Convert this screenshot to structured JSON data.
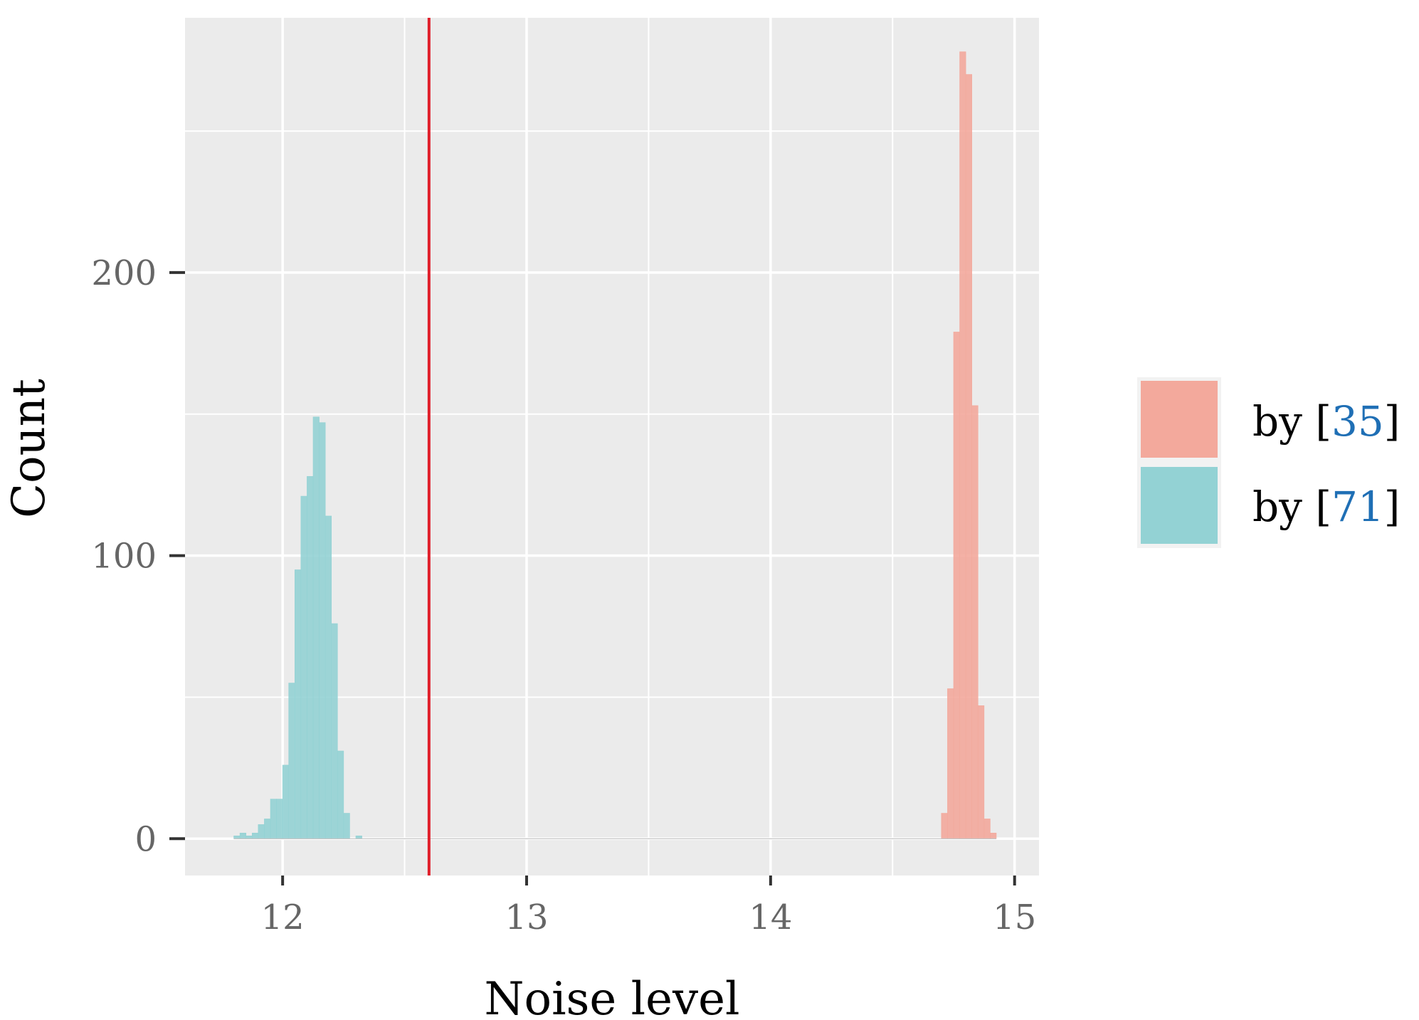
{
  "chart_data": {
    "type": "bar",
    "title": "",
    "xlabel": "Noise level",
    "ylabel": "Count",
    "xlim": [
      11.6,
      15.1
    ],
    "ylim": [
      -13,
      290
    ],
    "x_ticks": [
      12,
      13,
      14,
      15
    ],
    "x_tick_labels": [
      "12",
      "13",
      "14",
      "15"
    ],
    "y_ticks": [
      0,
      100,
      200
    ],
    "y_tick_labels": [
      "0",
      "100",
      "200"
    ],
    "x_minor_gridlines": [
      12.5,
      13.5,
      14.5
    ],
    "y_minor_gridlines": [
      50,
      150,
      250
    ],
    "grid": true,
    "legend_position": "right",
    "bin_width": 0.025,
    "series": [
      {
        "legend_prefix": "by [",
        "legend_ref": "35",
        "legend_suffix": "]",
        "color": "#f3a99c",
        "bins": [
          {
            "x": 14.7,
            "y": 9
          },
          {
            "x": 14.725,
            "y": 53
          },
          {
            "x": 14.75,
            "y": 179
          },
          {
            "x": 14.775,
            "y": 278
          },
          {
            "x": 14.8,
            "y": 270
          },
          {
            "x": 14.825,
            "y": 153
          },
          {
            "x": 14.85,
            "y": 47
          },
          {
            "x": 14.875,
            "y": 7
          },
          {
            "x": 14.9,
            "y": 2
          }
        ]
      },
      {
        "legend_prefix": "by [",
        "legend_ref": "71",
        "legend_suffix": "]",
        "color": "#93d2d4",
        "bins": [
          {
            "x": 11.8,
            "y": 1
          },
          {
            "x": 11.825,
            "y": 2
          },
          {
            "x": 11.85,
            "y": 1
          },
          {
            "x": 11.875,
            "y": 2
          },
          {
            "x": 11.9,
            "y": 5
          },
          {
            "x": 11.925,
            "y": 7
          },
          {
            "x": 11.95,
            "y": 14
          },
          {
            "x": 11.975,
            "y": 14
          },
          {
            "x": 12.0,
            "y": 26
          },
          {
            "x": 12.025,
            "y": 55
          },
          {
            "x": 12.05,
            "y": 95
          },
          {
            "x": 12.075,
            "y": 121
          },
          {
            "x": 12.1,
            "y": 128
          },
          {
            "x": 12.125,
            "y": 149
          },
          {
            "x": 12.15,
            "y": 147
          },
          {
            "x": 12.175,
            "y": 114
          },
          {
            "x": 12.2,
            "y": 76
          },
          {
            "x": 12.225,
            "y": 31
          },
          {
            "x": 12.25,
            "y": 9
          },
          {
            "x": 12.3,
            "y": 1
          }
        ]
      }
    ],
    "reference_line": {
      "x": 12.6,
      "color": "#e01e2a"
    }
  }
}
